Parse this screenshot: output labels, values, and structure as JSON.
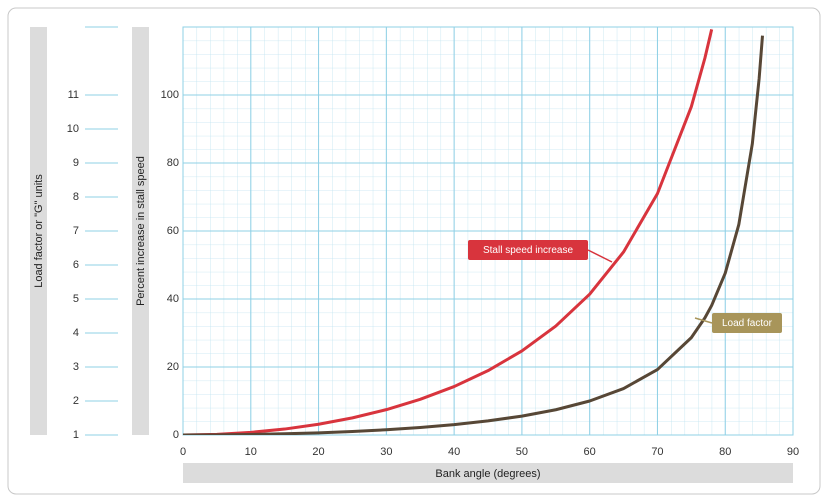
{
  "chart_data": {
    "type": "line",
    "x_label": "Bank angle (degrees)",
    "y_label": "Percent increase in stall speed",
    "y2_label": "Load factor or \"G\" units",
    "x": [
      0,
      5,
      10,
      15,
      20,
      25,
      30,
      35,
      40,
      45,
      50,
      55,
      60,
      65,
      70,
      75,
      77,
      78,
      80,
      82,
      84,
      85,
      85.5
    ],
    "series": [
      {
        "name": "Stall speed increase",
        "color": "#d8343d",
        "values": [
          0,
          0.19,
          0.77,
          1.75,
          3.16,
          5.04,
          7.46,
          10.49,
          14.25,
          18.92,
          24.73,
          32.04,
          41.42,
          53.83,
          70.99,
          96.56,
          110.84,
          119.3,
          null,
          null,
          null,
          null,
          null
        ]
      },
      {
        "name": "Load factor",
        "color": "#574736",
        "axis": "y2",
        "values": [
          1,
          1.004,
          1.015,
          1.035,
          1.064,
          1.103,
          1.155,
          1.221,
          1.305,
          1.414,
          1.556,
          1.743,
          2,
          2.366,
          2.924,
          3.864,
          4.445,
          4.81,
          5.759,
          7.185,
          9.567,
          11.474,
          12.745
        ]
      }
    ],
    "xlim": [
      0,
      90
    ],
    "xticks": [
      0,
      10,
      20,
      30,
      40,
      50,
      60,
      70,
      80,
      90
    ],
    "ylim": [
      0,
      120
    ],
    "yticks": [
      0,
      20,
      40,
      60,
      80,
      100
    ],
    "y2lim": [
      1,
      13
    ],
    "y2ticks": [
      1,
      2,
      3,
      4,
      5,
      6,
      7,
      8,
      9,
      10,
      11
    ],
    "grid": true
  }
}
